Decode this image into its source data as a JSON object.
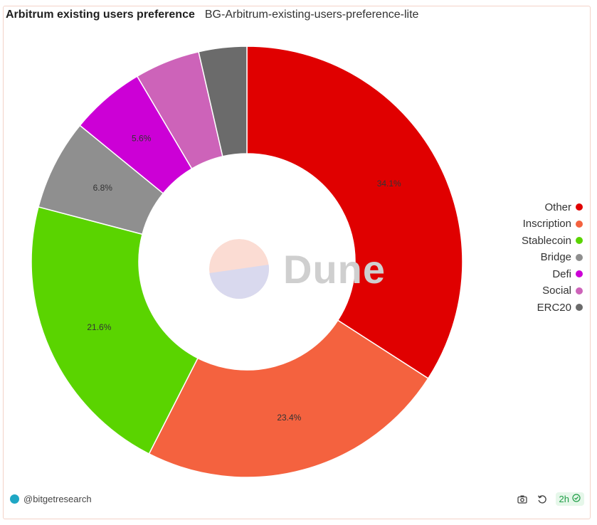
{
  "header": {
    "title": "Arbitrum existing users preference",
    "subtitle": "BG-Arbitrum-existing-users-preference-lite"
  },
  "watermark": {
    "text": "Dune"
  },
  "footer": {
    "author": "@bitgetresearch",
    "age_badge": "2h",
    "icons": [
      "camera-icon",
      "refresh-icon",
      "check-circle-icon"
    ]
  },
  "chart_data": {
    "type": "pie",
    "donut": true,
    "categories": [
      "Other",
      "Inscription",
      "Stablecoin",
      "Bridge",
      "Defi",
      "Social",
      "ERC20"
    ],
    "values": [
      34.1,
      23.4,
      21.6,
      6.8,
      5.6,
      4.9,
      3.6
    ],
    "labels": [
      "34.1%",
      "23.4%",
      "21.6%",
      "6.8%",
      "5.6%",
      "",
      ""
    ],
    "colors": [
      "#e00000",
      "#f4623f",
      "#5ad400",
      "#8f8f8f",
      "#cc00d6",
      "#cd63b9",
      "#6b6b6b"
    ],
    "legend_position": "right"
  }
}
